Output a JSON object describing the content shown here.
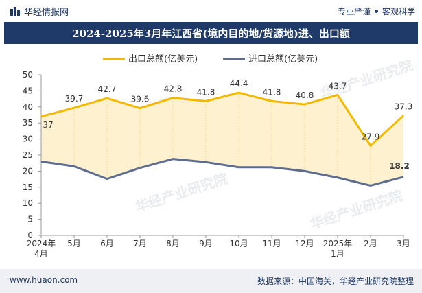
{
  "header": {
    "brand": "华经情报网",
    "tagline_left": "专业严谨",
    "tagline_right": "客观科学"
  },
  "footer": {
    "website": "www.huaon.com",
    "source": "数据来源：中国海关，华经产业研究院整理"
  },
  "watermark": "华经产业研究院",
  "colors": {
    "export": "#f5b800",
    "import": "#5d6c8f",
    "fill": "#fdf1cf",
    "title_bg": "#1f3a68"
  },
  "chart_data": {
    "type": "line",
    "title": "2024-2025年3月年江西省(境内目的地/货源地)进、出口额",
    "categories": [
      "2024年\n4月",
      "5月",
      "6月",
      "7月",
      "8月",
      "9月",
      "10月",
      "11月",
      "12月",
      "2025年\n1月",
      "2月",
      "3月"
    ],
    "series": [
      {
        "name": "出口总额(亿美元)",
        "values": [
          37,
          39.7,
          42.7,
          39.6,
          42.8,
          41.8,
          44.4,
          41.8,
          40.8,
          43.7,
          27.9,
          37.3
        ],
        "labels": [
          "37",
          "39.7",
          "42.7",
          "39.6",
          "42.8",
          "41.8",
          "44.4",
          "41.8",
          "40.8",
          "43.7",
          "27.9",
          "37.3"
        ]
      },
      {
        "name": "进口总额(亿美元)",
        "values": [
          23.0,
          21.5,
          17.6,
          21.0,
          23.8,
          22.8,
          21.2,
          21.2,
          20.0,
          18.0,
          15.5,
          18.2
        ],
        "labels": [
          "",
          "",
          "",
          "",
          "",
          "",
          "",
          "",
          "",
          "",
          "",
          "18.2"
        ]
      }
    ],
    "ylim": [
      0,
      50
    ],
    "yticks": [
      0,
      5,
      10,
      15,
      20,
      25,
      30,
      35,
      40,
      45,
      50
    ],
    "legend": "top-center",
    "grid": false
  }
}
